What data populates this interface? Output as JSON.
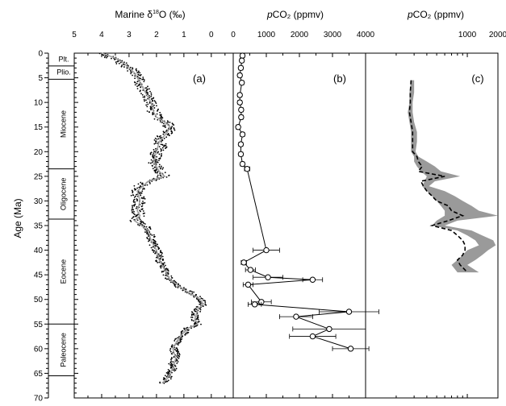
{
  "chart_data": [
    {
      "type": "scatter",
      "panel_label": "(a)",
      "xlabel_prefix": "Marine ",
      "xlabel_delta": "δ",
      "xlabel_sup": "18",
      "xlabel_suffix": "O (‰)",
      "ylabel": "Age (Ma)",
      "xlim": [
        5,
        -0.8
      ],
      "ylim": [
        0,
        70
      ],
      "x_ticks": [
        5,
        4,
        3,
        2,
        1,
        0
      ],
      "y_ticks": [
        0,
        5,
        10,
        15,
        20,
        25,
        30,
        35,
        40,
        45,
        50,
        55,
        60,
        65,
        70
      ],
      "epochs": [
        {
          "label": "Plt.",
          "top": 0,
          "bottom": 2.6
        },
        {
          "label": "Plio.",
          "top": 2.6,
          "bottom": 5.3
        },
        {
          "label": "Miocene",
          "top": 5.3,
          "bottom": 23.5
        },
        {
          "label": "Oligocene",
          "top": 23.5,
          "bottom": 33.7
        },
        {
          "label": "Eocene",
          "top": 33.7,
          "bottom": 55
        },
        {
          "label": "Paleocene",
          "top": 55,
          "bottom": 65.5
        }
      ],
      "series": [
        {
          "style": "raw-points",
          "color": "#000000",
          "age": [
            0,
            1,
            2,
            3,
            4,
            5,
            6,
            7,
            8,
            9,
            10,
            11,
            12,
            13,
            14,
            15,
            16,
            17,
            18,
            19,
            20,
            21,
            22,
            23,
            24,
            25,
            26,
            27,
            28,
            29,
            30,
            31,
            32,
            33,
            34,
            35,
            36,
            37,
            38,
            39,
            40,
            41,
            42,
            43,
            44,
            45,
            46,
            47,
            48,
            49,
            50,
            51,
            52,
            53,
            54,
            55,
            56,
            57,
            58,
            59,
            60,
            61,
            62,
            63,
            64,
            65,
            66,
            67
          ],
          "value": [
            4.1,
            3.6,
            3.3,
            3.0,
            2.8,
            2.7,
            2.6,
            2.5,
            2.4,
            2.3,
            2.2,
            2.2,
            2.1,
            2.0,
            1.7,
            1.5,
            1.6,
            1.8,
            1.9,
            1.8,
            2.0,
            2.0,
            2.1,
            2.0,
            1.9,
            1.7,
            2.3,
            2.6,
            2.7,
            2.7,
            2.6,
            2.7,
            2.7,
            2.6,
            2.8,
            2.4,
            2.3,
            2.2,
            2.2,
            2.1,
            2.0,
            1.9,
            1.9,
            1.8,
            1.7,
            1.6,
            1.5,
            1.3,
            1.0,
            0.6,
            0.4,
            0.3,
            0.5,
            0.6,
            0.6,
            0.5,
            0.9,
            1.0,
            1.2,
            1.3,
            1.4,
            1.3,
            1.3,
            1.4,
            1.4,
            1.5,
            1.6,
            1.8
          ]
        },
        {
          "style": "smoothed-line",
          "color": "#a0a0a0",
          "age": [
            0,
            1,
            2,
            3,
            4,
            5,
            6,
            8,
            10,
            12,
            13,
            14,
            15,
            16,
            18,
            20,
            22,
            24,
            25,
            26,
            28,
            30,
            32,
            33,
            34,
            36,
            38,
            40,
            42,
            44,
            46,
            48,
            50,
            51,
            52,
            54,
            55,
            56,
            58,
            60,
            62,
            64,
            66,
            67
          ],
          "value": [
            4.0,
            3.5,
            3.2,
            3.0,
            2.8,
            2.7,
            2.6,
            2.4,
            2.2,
            2.1,
            2.0,
            1.7,
            1.5,
            1.6,
            1.9,
            2.0,
            2.1,
            1.9,
            1.7,
            2.3,
            2.7,
            2.6,
            2.7,
            2.6,
            2.8,
            2.3,
            2.2,
            2.0,
            1.9,
            1.7,
            1.5,
            1.0,
            0.4,
            0.3,
            0.5,
            0.6,
            0.5,
            0.9,
            1.2,
            1.4,
            1.3,
            1.4,
            1.6,
            1.8
          ]
        }
      ]
    },
    {
      "type": "scatter",
      "panel_label": "(b)",
      "xlabel_prefix": "",
      "xlabel_italic": "p",
      "xlabel_suffix": "CO₂ (ppmv)",
      "xlim": [
        0,
        4000
      ],
      "ylim": [
        0,
        70
      ],
      "x_ticks": [
        0,
        1000,
        2000,
        3000,
        4000
      ],
      "series": [
        {
          "style": "line-with-circles",
          "color": "#000000",
          "points": [
            {
              "age": 0.5,
              "value": 280,
              "xerr": 60
            },
            {
              "age": 1.5,
              "value": 260,
              "xerr": 60
            },
            {
              "age": 3,
              "value": 230,
              "xerr": 60
            },
            {
              "age": 4.5,
              "value": 200,
              "xerr": 60
            },
            {
              "age": 6,
              "value": 260,
              "xerr": 60
            },
            {
              "age": 8.5,
              "value": 200,
              "xerr": 60
            },
            {
              "age": 10,
              "value": 200,
              "xerr": 60
            },
            {
              "age": 11.5,
              "value": 240,
              "xerr": 60
            },
            {
              "age": 13,
              "value": 240,
              "xerr": 60
            },
            {
              "age": 15,
              "value": 150,
              "xerr": 60
            },
            {
              "age": 16.5,
              "value": 280,
              "xerr": 60
            },
            {
              "age": 18.5,
              "value": 230,
              "xerr": 60
            },
            {
              "age": 20.5,
              "value": 230,
              "xerr": 60
            },
            {
              "age": 22.5,
              "value": 280,
              "xerr": 60
            },
            {
              "age": 23.5,
              "value": 420,
              "xerr": 80
            },
            {
              "age": 40,
              "value": 1000,
              "xerr": 400
            },
            {
              "age": 42.5,
              "value": 320,
              "xerr": 80
            },
            {
              "age": 44,
              "value": 520,
              "xerr": 150
            },
            {
              "age": 45.5,
              "value": 1050,
              "xerr": 450
            },
            {
              "age": 46,
              "value": 2400,
              "xerr": 300
            },
            {
              "age": 47,
              "value": 450,
              "xerr": 150
            },
            {
              "age": 50.5,
              "value": 850,
              "xerr": 300
            },
            {
              "age": 51,
              "value": 650,
              "xerr": 200
            },
            {
              "age": 52.5,
              "value": 3500,
              "xerr": 900
            },
            {
              "age": 53.5,
              "value": 1900,
              "xerr": 500
            },
            {
              "age": 56,
              "value": 2900,
              "xerr": 1100
            },
            {
              "age": 57.5,
              "value": 2400,
              "xerr": 700
            },
            {
              "age": 60,
              "value": 3550,
              "xerr": 550
            }
          ]
        }
      ]
    },
    {
      "type": "area",
      "panel_label": "(c)",
      "xlabel_prefix": "",
      "xlabel_italic": "p",
      "xlabel_suffix": "CO₂ (ppmv)",
      "xlim": [
        100,
        2000
      ],
      "x_scale": "log",
      "ylim": [
        0,
        70
      ],
      "x_ticks": [
        1000,
        2000
      ],
      "series": [
        {
          "style": "shaded-band",
          "color": "#9a9a9a",
          "age": [
            5.5,
            8,
            10,
            12,
            14,
            16,
            18,
            20,
            21,
            22,
            23,
            24,
            25,
            26,
            27,
            28,
            29,
            30,
            31,
            32,
            33,
            34,
            35,
            36,
            37,
            38,
            39,
            40,
            41,
            42,
            43,
            44.5
          ],
          "lower": [
            280,
            270,
            270,
            260,
            270,
            280,
            280,
            280,
            300,
            300,
            320,
            350,
            400,
            380,
            360,
            400,
            450,
            500,
            550,
            600,
            600,
            500,
            450,
            800,
            1000,
            1200,
            1300,
            1000,
            900,
            800,
            700,
            800
          ],
          "upper": [
            300,
            300,
            290,
            290,
            300,
            320,
            320,
            310,
            330,
            400,
            480,
            550,
            850,
            480,
            420,
            600,
            750,
            900,
            1100,
            1300,
            2000,
            800,
            600,
            1100,
            1400,
            1800,
            1900,
            1600,
            1400,
            1200,
            1000,
            1300
          ]
        },
        {
          "style": "dashed-line",
          "color": "#000000",
          "age": [
            5.5,
            8,
            10,
            12,
            14,
            16,
            18,
            20,
            21,
            22,
            23,
            24,
            25,
            26,
            27,
            28,
            29,
            30,
            31,
            32,
            33,
            34,
            35,
            36,
            37,
            38,
            39,
            40,
            41,
            42,
            43,
            44,
            44.5
          ],
          "value": [
            280,
            275,
            275,
            270,
            280,
            290,
            290,
            290,
            320,
            330,
            360,
            330,
            600,
            350,
            370,
            400,
            450,
            500,
            650,
            700,
            900,
            650,
            450,
            700,
            800,
            900,
            950,
            950,
            900,
            800,
            850,
            950,
            1000
          ]
        }
      ]
    }
  ]
}
